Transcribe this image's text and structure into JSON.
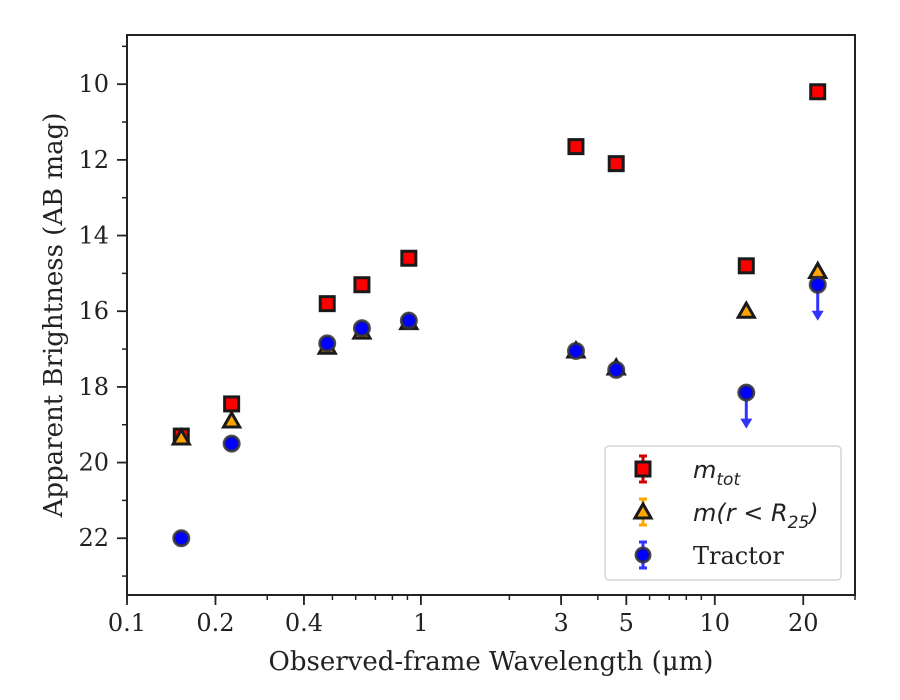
{
  "chart_data": {
    "type": "scatter",
    "xlabel": "Observed-frame Wavelength (μm)",
    "ylabel": "Apparent Brightness (AB mag)",
    "xscale": "log",
    "yaxis_inverted": true,
    "xlim": [
      0.1,
      30
    ],
    "ylim": [
      23.5,
      8.7
    ],
    "xticks": [
      {
        "value": 0.1,
        "label": "0.1"
      },
      {
        "value": 0.2,
        "label": "0.2"
      },
      {
        "value": 0.4,
        "label": "0.4"
      },
      {
        "value": 1,
        "label": "1"
      },
      {
        "value": 3,
        "label": "3"
      },
      {
        "value": 5,
        "label": "5"
      },
      {
        "value": 10,
        "label": "10"
      },
      {
        "value": 20,
        "label": "20"
      }
    ],
    "yticks": [
      {
        "value": 10,
        "label": "10"
      },
      {
        "value": 12,
        "label": "12"
      },
      {
        "value": 14,
        "label": "14"
      },
      {
        "value": 16,
        "label": "16"
      },
      {
        "value": 18,
        "label": "18"
      },
      {
        "value": 20,
        "label": "20"
      },
      {
        "value": 22,
        "label": "22"
      }
    ],
    "legend_position": "bottom-right",
    "series": [
      {
        "name": "m_tot",
        "legend_main": "m",
        "legend_sub": "tot",
        "marker": "square",
        "fill_color": "#ff0000",
        "edge_color": "#1a1a1a",
        "errorbar_color": "#cc0000",
        "x": [
          0.153,
          0.227,
          0.48,
          0.63,
          0.91,
          3.37,
          4.62,
          12.8,
          22.4
        ],
        "y": [
          19.3,
          18.45,
          15.8,
          15.3,
          14.6,
          11.65,
          12.1,
          14.8,
          10.2
        ]
      },
      {
        "name": "m(r<R25)",
        "legend_main": "m(r < R",
        "legend_sub": "25",
        "legend_end": ")",
        "marker": "triangle",
        "fill_color": "#ffa500",
        "edge_color": "#1a1a1a",
        "errorbar_color": "#ffa500",
        "x": [
          0.153,
          0.227,
          0.48,
          0.63,
          0.91,
          3.37,
          4.62,
          12.8,
          22.4
        ],
        "y": [
          19.35,
          18.9,
          16.95,
          16.55,
          16.3,
          17.05,
          17.5,
          16.0,
          14.95
        ]
      },
      {
        "name": "Tractor",
        "legend_main": "Tractor",
        "marker": "circle",
        "fill_color": "#0000ff",
        "edge_color": "#333333",
        "errorbar_color": "#3333ff",
        "x": [
          0.153,
          0.227,
          0.48,
          0.63,
          0.91,
          3.37,
          4.62,
          12.8,
          22.4
        ],
        "y": [
          22.0,
          19.5,
          16.85,
          16.45,
          16.25,
          17.05,
          17.55,
          18.15,
          15.3
        ],
        "upper_limit": [
          false,
          false,
          false,
          false,
          false,
          false,
          false,
          true,
          true
        ]
      }
    ]
  }
}
